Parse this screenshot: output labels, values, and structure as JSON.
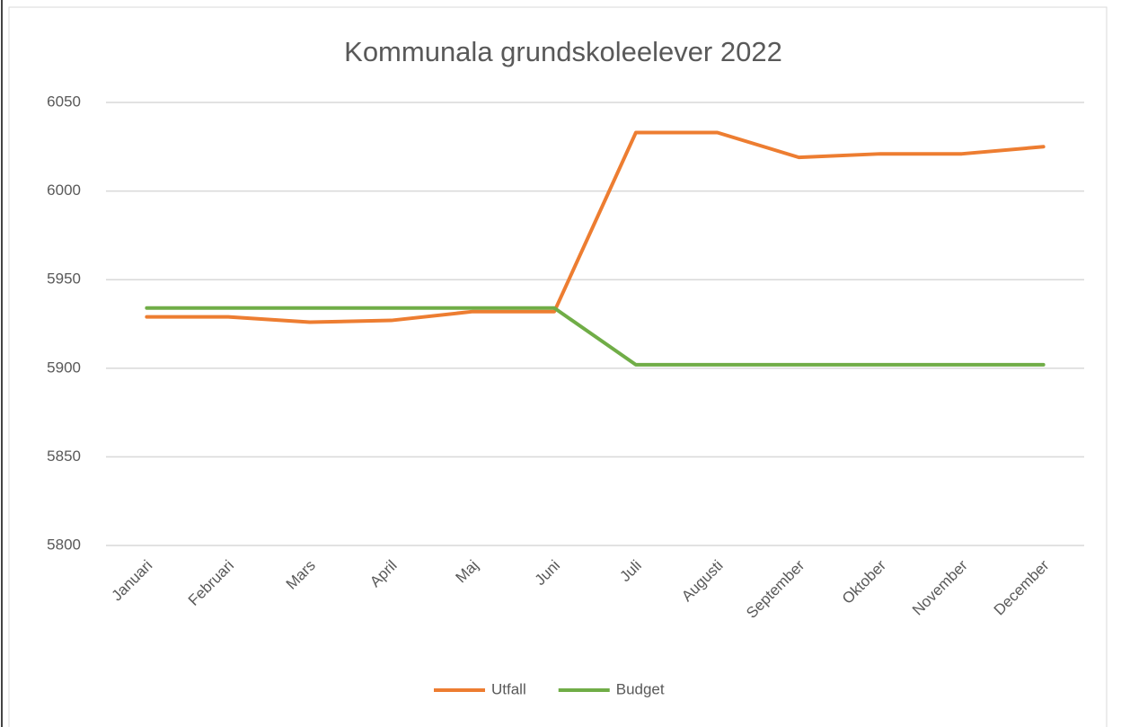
{
  "chart_data": {
    "type": "line",
    "title": "Kommunala grundskoleelever 2022",
    "categories": [
      "Januari",
      "Februari",
      "Mars",
      "April",
      "Maj",
      "Juni",
      "Juli",
      "Augusti",
      "September",
      "Oktober",
      "November",
      "December"
    ],
    "series": [
      {
        "name": "Utfall",
        "color": "#ed7d31",
        "values": [
          5929,
          5929,
          5926,
          5927,
          5932,
          5932,
          6033,
          6033,
          6019,
          6021,
          6021,
          6025
        ]
      },
      {
        "name": "Budget",
        "color": "#70ad47",
        "values": [
          5934,
          5934,
          5934,
          5934,
          5934,
          5934,
          5902,
          5902,
          5902,
          5902,
          5902,
          5902
        ]
      }
    ],
    "ylim": [
      5800,
      6050
    ],
    "yticks": [
      5800,
      5850,
      5900,
      5950,
      6000,
      6050
    ],
    "grid": true,
    "legend": "bottom"
  }
}
